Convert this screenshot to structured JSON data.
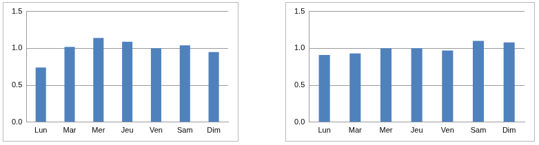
{
  "chart_data": [
    {
      "type": "bar",
      "categories": [
        "Lun",
        "Mar",
        "Mer",
        "Jeu",
        "Ven",
        "Sam",
        "Dim"
      ],
      "values": [
        0.74,
        1.02,
        1.14,
        1.09,
        1.0,
        1.04,
        0.95
      ],
      "color": "#4f81bd",
      "ylim": [
        0,
        1.5
      ],
      "yticks": [
        {
          "value": 0,
          "label": "0.0"
        },
        {
          "value": 0.5,
          "label": "0.5"
        },
        {
          "value": 1,
          "label": "1.0"
        },
        {
          "value": 1.5,
          "label": "1.5"
        }
      ],
      "grid": true
    },
    {
      "type": "bar",
      "categories": [
        "Lun",
        "Mar",
        "Mer",
        "Jeu",
        "Ven",
        "Sam",
        "Dim"
      ],
      "values": [
        0.91,
        0.93,
        1.0,
        1.0,
        0.97,
        1.1,
        1.08
      ],
      "color": "#4f81bd",
      "ylim": [
        0,
        1.5
      ],
      "yticks": [
        {
          "value": 0,
          "label": "0.0"
        },
        {
          "value": 0.5,
          "label": "0.5"
        },
        {
          "value": 1,
          "label": "1.0"
        },
        {
          "value": 1.5,
          "label": "1.5"
        }
      ],
      "grid": true
    }
  ]
}
